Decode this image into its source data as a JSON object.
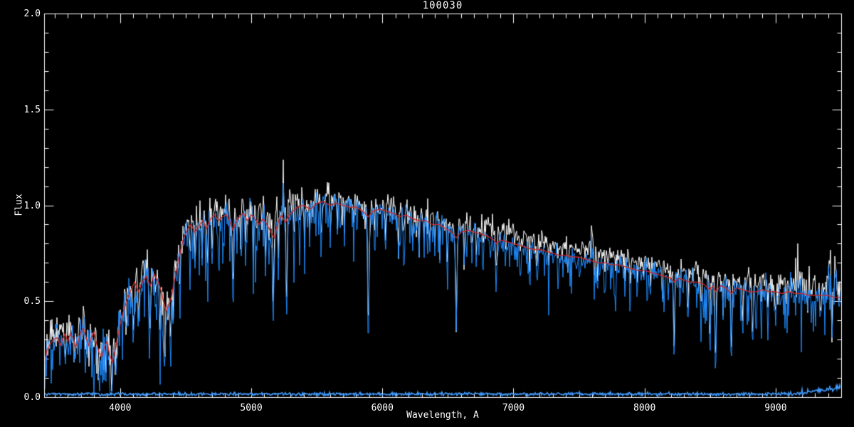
{
  "chart_data": {
    "type": "line",
    "title": "100030",
    "xlabel": "Wavelength, A",
    "ylabel": "Flux",
    "xlim": [
      3420,
      9500
    ],
    "ylim": [
      0.0,
      2.0
    ],
    "grid": false,
    "legend": null,
    "x_ticks": [
      4000,
      5000,
      6000,
      7000,
      8000,
      9000
    ],
    "x_tick_labels": [
      "4000",
      "5000",
      "6000",
      "7000",
      "8000",
      "9000"
    ],
    "x_minor_step": 100,
    "y_ticks": [
      0.0,
      0.5,
      1.0,
      1.5,
      2.0
    ],
    "y_tick_labels": [
      "0.0",
      "0.5",
      "1.0",
      "1.5",
      "2.0"
    ],
    "y_minor_step": 0.1,
    "colors": {
      "background": "#000000",
      "frame": "#ffffff",
      "observed": "#ffffff",
      "smoothed": "#1e8cff",
      "model": "#d42525",
      "error_line": "#3f9bff"
    },
    "series": [
      {
        "name": "observed-spectrum",
        "color": "#ffffff",
        "style": "noisy"
      },
      {
        "name": "smoothed-spectrum",
        "color": "#1e8cff",
        "style": "noisy"
      },
      {
        "name": "model-fit",
        "color": "#d42525",
        "style": "smooth"
      },
      {
        "name": "error-spectrum",
        "color": "#3f9bff",
        "style": "flat",
        "base": 0.016
      }
    ],
    "spectrum_range": [
      3423,
      9500
    ],
    "noise_seed": 20,
    "continuum": [
      [
        3423,
        0.18
      ],
      [
        3440,
        0.24
      ],
      [
        3460,
        0.27
      ],
      [
        3490,
        0.3
      ],
      [
        3520,
        0.31
      ],
      [
        3545,
        0.27
      ],
      [
        3560,
        0.3
      ],
      [
        3580,
        0.33
      ],
      [
        3600,
        0.29
      ],
      [
        3620,
        0.33
      ],
      [
        3640,
        0.31
      ],
      [
        3660,
        0.26
      ],
      [
        3680,
        0.29
      ],
      [
        3700,
        0.34
      ],
      [
        3720,
        0.36
      ],
      [
        3740,
        0.31
      ],
      [
        3760,
        0.27
      ],
      [
        3780,
        0.31
      ],
      [
        3800,
        0.34
      ],
      [
        3820,
        0.28
      ],
      [
        3840,
        0.23
      ],
      [
        3860,
        0.21
      ],
      [
        3880,
        0.26
      ],
      [
        3900,
        0.29
      ],
      [
        3920,
        0.22
      ],
      [
        3940,
        0.18
      ],
      [
        3960,
        0.24
      ],
      [
        3980,
        0.31
      ],
      [
        4000,
        0.38
      ],
      [
        4030,
        0.46
      ],
      [
        4060,
        0.52
      ],
      [
        4090,
        0.57
      ],
      [
        4110,
        0.6
      ],
      [
        4140,
        0.55
      ],
      [
        4170,
        0.6
      ],
      [
        4200,
        0.63
      ],
      [
        4230,
        0.58
      ],
      [
        4260,
        0.64
      ],
      [
        4290,
        0.6
      ],
      [
        4310,
        0.56
      ],
      [
        4330,
        0.5
      ],
      [
        4350,
        0.45
      ],
      [
        4370,
        0.48
      ],
      [
        4390,
        0.52
      ],
      [
        4420,
        0.63
      ],
      [
        4450,
        0.73
      ],
      [
        4480,
        0.82
      ],
      [
        4510,
        0.87
      ],
      [
        4540,
        0.9
      ],
      [
        4570,
        0.86
      ],
      [
        4600,
        0.89
      ],
      [
        4630,
        0.92
      ],
      [
        4660,
        0.88
      ],
      [
        4690,
        0.93
      ],
      [
        4720,
        0.95
      ],
      [
        4750,
        0.92
      ],
      [
        4780,
        0.94
      ],
      [
        4810,
        0.95
      ],
      [
        4840,
        0.91
      ],
      [
        4861,
        0.87
      ],
      [
        4880,
        0.91
      ],
      [
        4910,
        0.94
      ],
      [
        4940,
        0.96
      ],
      [
        4970,
        0.92
      ],
      [
        5000,
        0.95
      ],
      [
        5030,
        0.93
      ],
      [
        5060,
        0.9
      ],
      [
        5090,
        0.93
      ],
      [
        5120,
        0.9
      ],
      [
        5150,
        0.86
      ],
      [
        5175,
        0.83
      ],
      [
        5200,
        0.9
      ],
      [
        5230,
        0.95
      ],
      [
        5260,
        0.91
      ],
      [
        5290,
        0.95
      ],
      [
        5320,
        0.97
      ],
      [
        5350,
        0.99
      ],
      [
        5400,
        1.0
      ],
      [
        5450,
        0.98
      ],
      [
        5500,
        1.01
      ],
      [
        5550,
        1.02
      ],
      [
        5600,
        1.0
      ],
      [
        5650,
        1.01
      ],
      [
        5700,
        1.0
      ],
      [
        5750,
        0.99
      ],
      [
        5800,
        0.99
      ],
      [
        5850,
        0.97
      ],
      [
        5893,
        0.94
      ],
      [
        5930,
        0.97
      ],
      [
        5980,
        0.98
      ],
      [
        6030,
        0.97
      ],
      [
        6080,
        0.96
      ],
      [
        6130,
        0.94
      ],
      [
        6180,
        0.95
      ],
      [
        6230,
        0.93
      ],
      [
        6280,
        0.92
      ],
      [
        6330,
        0.92
      ],
      [
        6380,
        0.9
      ],
      [
        6430,
        0.9
      ],
      [
        6480,
        0.88
      ],
      [
        6530,
        0.86
      ],
      [
        6563,
        0.83
      ],
      [
        6600,
        0.86
      ],
      [
        6650,
        0.87
      ],
      [
        6700,
        0.86
      ],
      [
        6750,
        0.85
      ],
      [
        6800,
        0.84
      ],
      [
        6850,
        0.82
      ],
      [
        6870,
        0.8
      ],
      [
        6900,
        0.82
      ],
      [
        6950,
        0.81
      ],
      [
        7000,
        0.8
      ],
      [
        7050,
        0.79
      ],
      [
        7100,
        0.78
      ],
      [
        7150,
        0.77
      ],
      [
        7200,
        0.77
      ],
      [
        7250,
        0.76
      ],
      [
        7300,
        0.75
      ],
      [
        7350,
        0.74
      ],
      [
        7400,
        0.74
      ],
      [
        7450,
        0.73
      ],
      [
        7500,
        0.73
      ],
      [
        7550,
        0.72
      ],
      [
        7600,
        0.71
      ],
      [
        7650,
        0.7
      ],
      [
        7700,
        0.7
      ],
      [
        7750,
        0.69
      ],
      [
        7800,
        0.69
      ],
      [
        7850,
        0.68
      ],
      [
        7900,
        0.67
      ],
      [
        7950,
        0.66
      ],
      [
        8000,
        0.66
      ],
      [
        8050,
        0.65
      ],
      [
        8100,
        0.64
      ],
      [
        8150,
        0.63
      ],
      [
        8200,
        0.62
      ],
      [
        8227,
        0.6
      ],
      [
        8260,
        0.62
      ],
      [
        8300,
        0.61
      ],
      [
        8350,
        0.6
      ],
      [
        8400,
        0.6
      ],
      [
        8450,
        0.59
      ],
      [
        8498,
        0.56
      ],
      [
        8520,
        0.58
      ],
      [
        8542,
        0.55
      ],
      [
        8580,
        0.58
      ],
      [
        8620,
        0.57
      ],
      [
        8662,
        0.54
      ],
      [
        8700,
        0.57
      ],
      [
        8750,
        0.56
      ],
      [
        8800,
        0.55
      ],
      [
        8850,
        0.55
      ],
      [
        8900,
        0.56
      ],
      [
        8950,
        0.55
      ],
      [
        9000,
        0.55
      ],
      [
        9050,
        0.54
      ],
      [
        9100,
        0.55
      ],
      [
        9150,
        0.54
      ],
      [
        9200,
        0.54
      ],
      [
        9250,
        0.53
      ],
      [
        9300,
        0.53
      ],
      [
        9350,
        0.53
      ],
      [
        9400,
        0.53
      ],
      [
        9450,
        0.52
      ],
      [
        9500,
        0.52
      ]
    ],
    "absorption_lines": [
      [
        3580,
        0.12,
        8
      ],
      [
        3650,
        0.1,
        8
      ],
      [
        3735,
        0.14,
        8
      ],
      [
        3797,
        0.12,
        6
      ],
      [
        3835,
        0.15,
        8
      ],
      [
        3889,
        0.14,
        6
      ],
      [
        3933,
        0.16,
        8
      ],
      [
        3968,
        0.14,
        8
      ],
      [
        4045,
        0.18,
        6
      ],
      [
        4101,
        0.28,
        8
      ],
      [
        4144,
        0.15,
        6
      ],
      [
        4226,
        0.28,
        7
      ],
      [
        4271,
        0.18,
        6
      ],
      [
        4305,
        0.22,
        9
      ],
      [
        4340,
        0.38,
        8
      ],
      [
        4383,
        0.3,
        7
      ],
      [
        4404,
        0.2,
        5
      ],
      [
        4455,
        0.28,
        6
      ],
      [
        4531,
        0.25,
        6
      ],
      [
        4571,
        0.2,
        5
      ],
      [
        4625,
        0.22,
        5
      ],
      [
        4668,
        0.32,
        6
      ],
      [
        4703,
        0.25,
        5
      ],
      [
        4754,
        0.2,
        5
      ],
      [
        4861,
        0.4,
        7
      ],
      [
        4891,
        0.2,
        5
      ],
      [
        4920,
        0.28,
        5
      ],
      [
        4957,
        0.25,
        5
      ],
      [
        5015,
        0.25,
        5
      ],
      [
        5041,
        0.2,
        4
      ],
      [
        5110,
        0.28,
        5
      ],
      [
        5167,
        0.45,
        7
      ],
      [
        5205,
        0.32,
        5
      ],
      [
        5270,
        0.52,
        7
      ],
      [
        5328,
        0.3,
        5
      ],
      [
        5371,
        0.25,
        5
      ],
      [
        5405,
        0.28,
        4
      ],
      [
        5446,
        0.22,
        4
      ],
      [
        5535,
        0.3,
        5
      ],
      [
        5603,
        0.22,
        4
      ],
      [
        5658,
        0.2,
        4
      ],
      [
        5711,
        0.22,
        4
      ],
      [
        5782,
        0.2,
        4
      ],
      [
        5893,
        0.75,
        7
      ],
      [
        5940,
        0.18,
        4
      ],
      [
        6024,
        0.2,
        4
      ],
      [
        6122,
        0.28,
        5
      ],
      [
        6162,
        0.26,
        5
      ],
      [
        6230,
        0.18,
        4
      ],
      [
        6280,
        0.2,
        4
      ],
      [
        6318,
        0.18,
        4
      ],
      [
        6360,
        0.2,
        4
      ],
      [
        6400,
        0.18,
        4
      ],
      [
        6439,
        0.2,
        4
      ],
      [
        6495,
        0.25,
        5
      ],
      [
        6563,
        0.5,
        7
      ],
      [
        6625,
        0.18,
        4
      ],
      [
        6717,
        0.2,
        4
      ],
      [
        6768,
        0.18,
        4
      ],
      [
        6870,
        0.2,
        9
      ],
      [
        6940,
        0.15,
        4
      ],
      [
        7050,
        0.15,
        4
      ],
      [
        7122,
        0.15,
        4
      ],
      [
        7180,
        0.18,
        7
      ],
      [
        7270,
        0.15,
        4
      ],
      [
        7340,
        0.14,
        4
      ],
      [
        7414,
        0.16,
        4
      ],
      [
        7510,
        0.14,
        4
      ],
      [
        7617,
        0.16,
        5
      ],
      [
        7643,
        0.14,
        5
      ],
      [
        7699,
        0.15,
        4
      ],
      [
        7780,
        0.14,
        4
      ],
      [
        7850,
        0.14,
        4
      ],
      [
        7891,
        0.18,
        5
      ],
      [
        7947,
        0.14,
        4
      ],
      [
        8046,
        0.15,
        4
      ],
      [
        8135,
        0.15,
        4
      ],
      [
        8225,
        0.44,
        6
      ],
      [
        8270,
        0.15,
        4
      ],
      [
        8330,
        0.2,
        5
      ],
      [
        8433,
        0.2,
        5
      ],
      [
        8498,
        0.34,
        6
      ],
      [
        8542,
        0.5,
        6
      ],
      [
        8598,
        0.18,
        4
      ],
      [
        8662,
        0.42,
        6
      ],
      [
        8750,
        0.22,
        5
      ],
      [
        8824,
        0.28,
        6
      ],
      [
        8890,
        0.18,
        4
      ],
      [
        8940,
        0.16,
        4
      ],
      [
        9000,
        0.22,
        6
      ],
      [
        9080,
        0.16,
        4
      ],
      [
        9150,
        0.15,
        4
      ],
      [
        9244,
        0.16,
        5
      ],
      [
        9340,
        0.18,
        5
      ],
      [
        9430,
        0.28,
        6
      ],
      [
        5245,
        -0.27,
        3
      ],
      [
        7600,
        -0.1,
        14
      ],
      [
        7596,
        -0.08,
        4
      ],
      [
        9360,
        -0.08,
        5
      ],
      [
        9405,
        -0.1,
        4
      ],
      [
        9460,
        -0.12,
        4
      ]
    ],
    "noise_regions": [
      {
        "upto": 4000,
        "white_sigma": 0.055,
        "blue_sigma": 0.055,
        "spike_p": 0.22,
        "spike_max": 0.22,
        "white_offset": 0.03,
        "blue_offset": 0.0,
        "up_p": 0.06,
        "up_max": 0.06
      },
      {
        "upto": 4450,
        "white_sigma": 0.045,
        "blue_sigma": 0.05,
        "spike_p": 0.2,
        "spike_max": 0.3,
        "white_offset": 0.04,
        "blue_offset": 0.0,
        "up_p": 0.05,
        "up_max": 0.05
      },
      {
        "upto": 5400,
        "white_sigma": 0.04,
        "blue_sigma": 0.04,
        "spike_p": 0.16,
        "spike_max": 0.35,
        "white_offset": 0.05,
        "blue_offset": 0.0,
        "up_p": 0.05,
        "up_max": 0.05
      },
      {
        "upto": 6800,
        "white_sigma": 0.03,
        "blue_sigma": 0.03,
        "spike_p": 0.14,
        "spike_max": 0.28,
        "white_offset": 0.03,
        "blue_offset": 0.0,
        "up_p": 0.05,
        "up_max": 0.04
      },
      {
        "upto": 8200,
        "white_sigma": 0.025,
        "blue_sigma": 0.03,
        "spike_p": 0.14,
        "spike_max": 0.22,
        "white_offset": 0.05,
        "blue_offset": -0.01,
        "up_p": 0.05,
        "up_max": 0.04
      },
      {
        "upto": 9150,
        "white_sigma": 0.025,
        "blue_sigma": 0.035,
        "spike_p": 0.14,
        "spike_max": 0.26,
        "white_offset": 0.05,
        "blue_offset": -0.01,
        "up_p": 0.05,
        "up_max": 0.04
      },
      {
        "upto": 9500,
        "white_sigma": 0.04,
        "blue_sigma": 0.05,
        "spike_p": 0.14,
        "spike_max": 0.26,
        "white_offset": 0.04,
        "blue_offset": 0.0,
        "up_p": 0.12,
        "up_max": 0.12
      }
    ],
    "error_spectrum": {
      "base": 0.016,
      "sigma": 0.004,
      "rise_from": 9150,
      "rise_amount": 0.03
    }
  }
}
